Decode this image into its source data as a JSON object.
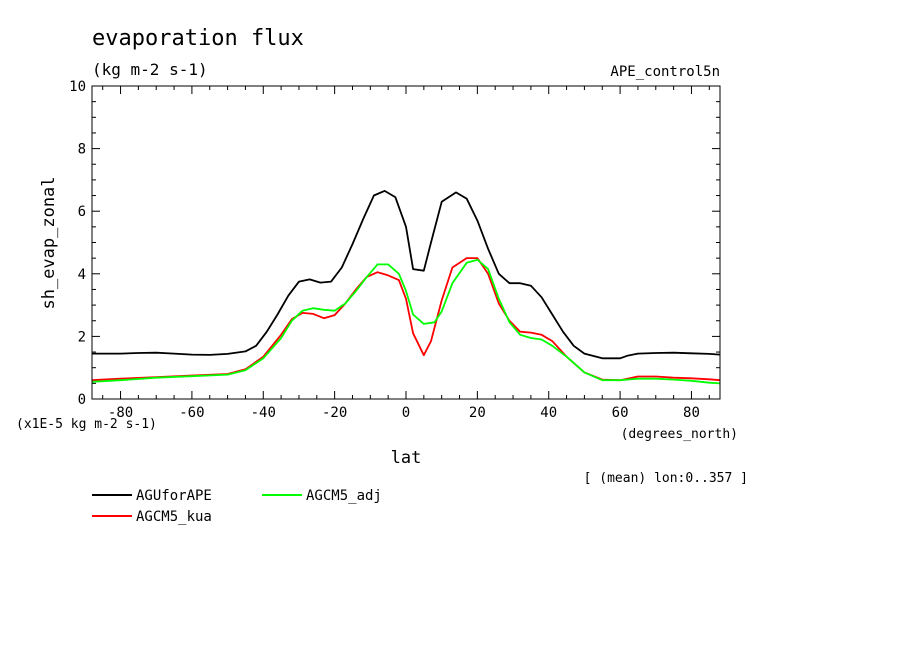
{
  "chart_data": {
    "type": "line",
    "title": "evaporation flux",
    "subtitle": "(kg m-2 s-1)",
    "run_label": "APE_control5n",
    "ylabel": "sh_evap_zonal",
    "xlabel": "lat",
    "x_units": "(degrees_north)",
    "y_scale_note": "(x1E-5 kg m-2 s-1)",
    "footnote": "[ (mean) lon:0..357 ]",
    "xlim": [
      -88,
      88
    ],
    "ylim": [
      0,
      10
    ],
    "x_ticks": [
      -80,
      -60,
      -40,
      -20,
      0,
      20,
      40,
      60,
      80
    ],
    "x_tick_labels": [
      "-80",
      "-60",
      "-40",
      "-20",
      "0",
      "20",
      "40",
      "60",
      "80"
    ],
    "y_ticks": [
      0,
      2,
      4,
      6,
      8,
      10
    ],
    "y_tick_labels": [
      "0",
      "2",
      "4",
      "6",
      "8",
      "10"
    ],
    "legend_position": "below-left",
    "grid": false,
    "series": [
      {
        "name": "AGUforAPE",
        "color": "#000000",
        "x": [
          -88,
          -80,
          -75,
          -70,
          -65,
          -60,
          -55,
          -50,
          -45,
          -42,
          -39,
          -36,
          -33,
          -30,
          -27,
          -24,
          -21,
          -18,
          -15,
          -12,
          -9,
          -6,
          -3,
          0,
          2,
          5,
          7,
          10,
          14,
          17,
          20,
          23,
          26,
          29,
          32,
          35,
          38,
          41,
          44,
          47,
          50,
          55,
          60,
          62,
          65,
          70,
          75,
          80,
          85,
          88
        ],
        "y": [
          1.45,
          1.45,
          1.47,
          1.48,
          1.45,
          1.42,
          1.41,
          1.44,
          1.52,
          1.7,
          2.15,
          2.7,
          3.3,
          3.75,
          3.82,
          3.72,
          3.75,
          4.2,
          4.95,
          5.75,
          6.5,
          6.65,
          6.45,
          5.5,
          4.15,
          4.1,
          5.0,
          6.3,
          6.6,
          6.4,
          5.7,
          4.8,
          4.0,
          3.7,
          3.7,
          3.62,
          3.25,
          2.7,
          2.15,
          1.7,
          1.45,
          1.3,
          1.3,
          1.38,
          1.45,
          1.47,
          1.48,
          1.46,
          1.44,
          1.42
        ]
      },
      {
        "name": "AGCM5_kua",
        "color": "#ff0000",
        "x": [
          -88,
          -80,
          -70,
          -60,
          -50,
          -45,
          -40,
          -35,
          -32,
          -29,
          -26,
          -23,
          -20,
          -17,
          -14,
          -11,
          -8,
          -5,
          -2,
          0,
          2,
          5,
          7,
          10,
          13,
          17,
          20,
          23,
          26,
          29,
          32,
          35,
          38,
          41,
          45,
          50,
          55,
          60,
          65,
          70,
          75,
          80,
          85,
          88
        ],
        "y": [
          0.6,
          0.65,
          0.7,
          0.75,
          0.8,
          0.95,
          1.35,
          2.05,
          2.55,
          2.75,
          2.72,
          2.58,
          2.68,
          3.05,
          3.5,
          3.9,
          4.05,
          3.95,
          3.8,
          3.2,
          2.1,
          1.4,
          1.85,
          3.15,
          4.2,
          4.5,
          4.5,
          4.0,
          3.05,
          2.5,
          2.15,
          2.12,
          2.05,
          1.85,
          1.35,
          0.85,
          0.62,
          0.6,
          0.72,
          0.72,
          0.68,
          0.66,
          0.63,
          0.6
        ]
      },
      {
        "name": "AGCM5_adj",
        "color": "#00ff00",
        "x": [
          -88,
          -80,
          -70,
          -60,
          -50,
          -45,
          -40,
          -35,
          -32,
          -29,
          -26,
          -23,
          -20,
          -17,
          -14,
          -11,
          -8,
          -5,
          -2,
          0,
          2,
          5,
          8,
          10,
          13,
          17,
          20,
          23,
          26,
          29,
          32,
          35,
          38,
          41,
          45,
          50,
          55,
          60,
          65,
          70,
          75,
          80,
          85,
          88
        ],
        "y": [
          0.55,
          0.6,
          0.68,
          0.73,
          0.78,
          0.92,
          1.3,
          1.95,
          2.5,
          2.82,
          2.9,
          2.85,
          2.82,
          3.05,
          3.45,
          3.9,
          4.3,
          4.3,
          4.0,
          3.45,
          2.7,
          2.4,
          2.45,
          2.8,
          3.7,
          4.35,
          4.45,
          4.15,
          3.2,
          2.45,
          2.05,
          1.95,
          1.9,
          1.7,
          1.35,
          0.85,
          0.6,
          0.6,
          0.65,
          0.65,
          0.62,
          0.58,
          0.52,
          0.5
        ]
      }
    ]
  }
}
